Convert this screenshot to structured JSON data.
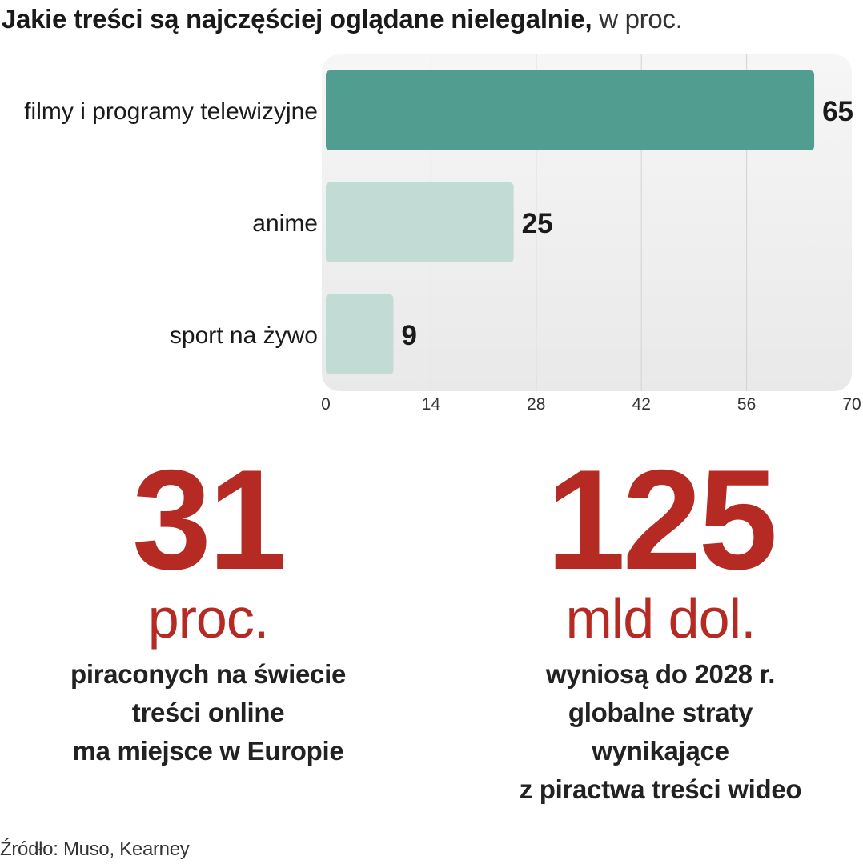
{
  "title": {
    "bold": "Jakie treści są najczęściej oglądane nielegalnie,",
    "light": " w proc."
  },
  "chart_data": {
    "type": "bar",
    "orientation": "horizontal",
    "categories": [
      "filmy i programy telewizyjne",
      "anime",
      "sport na żywo"
    ],
    "values": [
      65,
      25,
      9
    ],
    "xlim": [
      0,
      70
    ],
    "xticks": [
      "0",
      "14",
      "28",
      "42",
      "56",
      "70"
    ],
    "grid": true,
    "colors": [
      "#519e91",
      "#c2dbd5",
      "#c2dbd5"
    ],
    "label_color": "#1a1a1a"
  },
  "stats": {
    "left": {
      "number": "31",
      "unit": "proc.",
      "lines": [
        "piraconych na świecie",
        "treści online",
        "ma miejsce w Europie"
      ]
    },
    "right": {
      "number": "125",
      "unit": "mld dol.",
      "lines": [
        "wyniosą do 2028 r.",
        "globalne straty",
        "wynikające",
        "z piractwa treści wideo"
      ]
    },
    "accent_color": "#b52a22"
  },
  "source": "Źródło: Muso, Kearney"
}
